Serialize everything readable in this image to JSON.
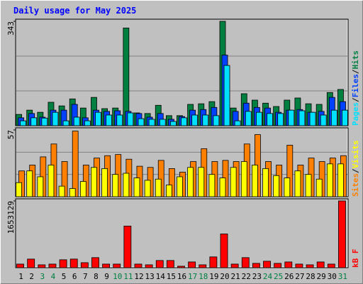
{
  "chart_data": [
    {
      "type": "bar",
      "title": "Daily usage for May 2025",
      "ylim": [
        0,
        343
      ],
      "yticks": [
        343
      ],
      "grid": true,
      "legend_separator": "/",
      "series": [
        {
          "name": "Hits",
          "color": "#008040",
          "values": [
            37,
            51,
            44,
            77,
            65,
            88,
            58,
            93,
            56,
            58,
            321,
            42,
            40,
            67,
            33,
            33,
            70,
            72,
            79,
            343,
            58,
            105,
            84,
            74,
            63,
            84,
            91,
            72,
            70,
            109,
            119
          ]
        },
        {
          "name": "Files",
          "color": "#0040ff",
          "values": [
            26,
            40,
            28,
            51,
            51,
            70,
            26,
            51,
            47,
            49,
            47,
            40,
            28,
            40,
            21,
            30,
            51,
            53,
            60,
            232,
            47,
            74,
            60,
            58,
            44,
            51,
            53,
            44,
            47,
            93,
            79
          ]
        },
        {
          "name": "Pages",
          "color": "#00e0ff",
          "values": [
            16,
            26,
            25,
            44,
            16,
            28,
            16,
            44,
            35,
            35,
            42,
            23,
            21,
            21,
            14,
            26,
            35,
            35,
            33,
            198,
            16,
            47,
            44,
            40,
            40,
            51,
            49,
            44,
            35,
            51,
            51
          ]
        }
      ]
    },
    {
      "type": "bar",
      "ylim": [
        0,
        57
      ],
      "yticks": [
        57
      ],
      "grid": true,
      "legend_separator": "/",
      "series": [
        {
          "name": "Visits",
          "color": "#ffff00",
          "values": [
            12,
            22,
            17,
            27,
            9,
            7,
            13,
            25,
            24,
            19,
            20,
            16,
            14,
            15,
            10,
            17,
            25,
            25,
            19,
            16,
            25,
            30,
            27,
            24,
            18,
            16,
            22,
            19,
            15,
            28,
            28
          ]
        },
        {
          "name": "Sites",
          "color": "#ff8000",
          "values": [
            22,
            27,
            34,
            45,
            30,
            56,
            27,
            33,
            35,
            36,
            32,
            26,
            25,
            31,
            24,
            21,
            30,
            41,
            30,
            31,
            30,
            45,
            53,
            30,
            27,
            44,
            27,
            33,
            30,
            33,
            35
          ]
        }
      ]
    },
    {
      "type": "bar",
      "ylim": [
        0,
        1653129
      ],
      "yticks": [
        1653129
      ],
      "grid": false,
      "categories": [
        "1",
        "2",
        "3",
        "4",
        "5",
        "6",
        "7",
        "8",
        "9",
        "10",
        "11",
        "12",
        "13",
        "14",
        "15",
        "16",
        "17",
        "18",
        "19",
        "20",
        "21",
        "22",
        "23",
        "24",
        "25",
        "26",
        "27",
        "28",
        "29",
        "30",
        "31"
      ],
      "category_colors": [
        "#000000",
        "#000000",
        "#008040",
        "#008040",
        "#000000",
        "#000000",
        "#000000",
        "#000000",
        "#000000",
        "#008040",
        "#008040",
        "#000000",
        "#000000",
        "#000000",
        "#000000",
        "#000000",
        "#008040",
        "#008040",
        "#000000",
        "#000000",
        "#000000",
        "#000000",
        "#000000",
        "#008040",
        "#008040",
        "#000000",
        "#000000",
        "#000000",
        "#000000",
        "#000000",
        "#008040"
      ],
      "series": [
        {
          "name": "kB F",
          "color": "#ff0000",
          "values": [
            89000,
            213000,
            71000,
            89000,
            196000,
            213000,
            124000,
            249000,
            89000,
            89000,
            1031000,
            89000,
            71000,
            178000,
            178000,
            36000,
            142000,
            71000,
            267000,
            835000,
            89000,
            249000,
            107000,
            160000,
            107000,
            142000,
            89000,
            71000,
            142000,
            89000,
            1653129
          ]
        }
      ]
    }
  ]
}
